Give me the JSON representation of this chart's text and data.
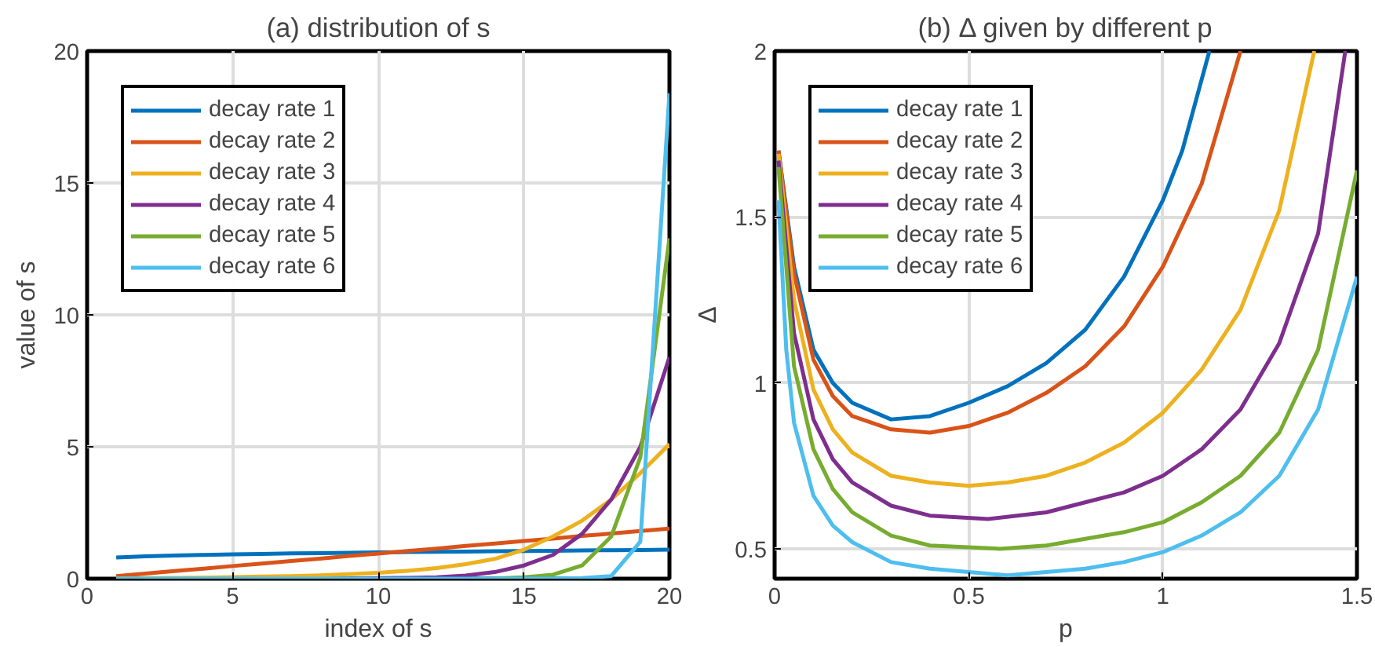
{
  "chart_data": [
    {
      "type": "line",
      "title": "(a) distribution of s",
      "xlabel": "index of s",
      "ylabel": "value of s",
      "x": [
        1,
        2,
        3,
        4,
        5,
        6,
        7,
        8,
        9,
        10,
        11,
        12,
        13,
        14,
        15,
        16,
        17,
        18,
        19,
        20
      ],
      "xlim": [
        0,
        20
      ],
      "xticks": [
        0,
        5,
        10,
        15,
        20
      ],
      "ylim": [
        0,
        20
      ],
      "yticks": [
        0,
        5,
        10,
        15,
        20
      ],
      "grid": true,
      "legend": "top left",
      "series": [
        {
          "name": "decay rate 1",
          "color": "#0072bd",
          "values": [
            0.8,
            0.85,
            0.88,
            0.9,
            0.92,
            0.94,
            0.96,
            0.97,
            0.98,
            1.0,
            1.01,
            1.02,
            1.03,
            1.04,
            1.05,
            1.06,
            1.07,
            1.08,
            1.09,
            1.1
          ]
        },
        {
          "name": "decay rate 2",
          "color": "#d95319",
          "values": [
            0.1,
            0.19,
            0.29,
            0.38,
            0.48,
            0.57,
            0.67,
            0.76,
            0.86,
            0.95,
            1.05,
            1.14,
            1.24,
            1.33,
            1.43,
            1.52,
            1.62,
            1.71,
            1.81,
            1.9
          ]
        },
        {
          "name": "decay rate 3",
          "color": "#edb120",
          "values": [
            0.01,
            0.02,
            0.03,
            0.04,
            0.06,
            0.08,
            0.1,
            0.13,
            0.17,
            0.22,
            0.3,
            0.4,
            0.55,
            0.75,
            1.1,
            1.6,
            2.2,
            3.0,
            4.0,
            5.1
          ]
        },
        {
          "name": "decay rate 4",
          "color": "#7e2f8e",
          "values": [
            null,
            null,
            null,
            null,
            null,
            null,
            null,
            null,
            0.01,
            0.02,
            0.03,
            0.05,
            0.12,
            0.25,
            0.5,
            0.9,
            1.7,
            3.0,
            5.0,
            8.4
          ]
        },
        {
          "name": "decay rate 5",
          "color": "#77ac30",
          "values": [
            null,
            null,
            null,
            null,
            null,
            null,
            null,
            null,
            null,
            null,
            null,
            null,
            null,
            0.01,
            0.05,
            0.15,
            0.5,
            1.6,
            4.6,
            12.9
          ]
        },
        {
          "name": "decay rate 6",
          "color": "#4dbeee",
          "values": [
            0,
            0,
            0,
            0,
            0,
            0,
            0,
            0,
            0,
            0,
            0,
            0,
            0,
            0,
            0,
            0,
            0.02,
            0.1,
            1.4,
            18.4
          ]
        }
      ]
    },
    {
      "type": "line",
      "title": "(b) Δ given by different p",
      "xlabel": "p",
      "ylabel": "Δ",
      "xlim": [
        0,
        1.5
      ],
      "xticks": [
        0,
        0.5,
        1,
        1.5
      ],
      "ylim": [
        0.41,
        2
      ],
      "yticks": [
        0.5,
        1,
        1.5,
        2
      ],
      "grid": true,
      "legend": "top left",
      "series": [
        {
          "name": "decay rate 1",
          "color": "#0072bd",
          "x": [
            0.01,
            0.05,
            0.1,
            0.15,
            0.2,
            0.3,
            0.4,
            0.5,
            0.6,
            0.7,
            0.8,
            0.9,
            1.0,
            1.05,
            1.12
          ],
          "values": [
            1.7,
            1.35,
            1.1,
            1.0,
            0.94,
            0.89,
            0.9,
            0.94,
            0.99,
            1.06,
            1.16,
            1.32,
            1.55,
            1.7,
            2.0
          ]
        },
        {
          "name": "decay rate 2",
          "color": "#d95319",
          "x": [
            0.01,
            0.05,
            0.1,
            0.15,
            0.2,
            0.3,
            0.4,
            0.5,
            0.6,
            0.7,
            0.8,
            0.9,
            1.0,
            1.1,
            1.2
          ],
          "values": [
            1.7,
            1.33,
            1.07,
            0.96,
            0.9,
            0.86,
            0.85,
            0.87,
            0.91,
            0.97,
            1.05,
            1.17,
            1.35,
            1.6,
            2.0
          ]
        },
        {
          "name": "decay rate 3",
          "color": "#edb120",
          "x": [
            0.01,
            0.05,
            0.1,
            0.15,
            0.2,
            0.3,
            0.4,
            0.5,
            0.6,
            0.7,
            0.8,
            0.9,
            1.0,
            1.1,
            1.2,
            1.3,
            1.39
          ],
          "values": [
            1.69,
            1.25,
            0.98,
            0.86,
            0.79,
            0.72,
            0.7,
            0.69,
            0.7,
            0.72,
            0.76,
            0.82,
            0.91,
            1.04,
            1.22,
            1.52,
            2.0
          ]
        },
        {
          "name": "decay rate 4",
          "color": "#7e2f8e",
          "x": [
            0.01,
            0.05,
            0.1,
            0.15,
            0.2,
            0.3,
            0.4,
            0.55,
            0.7,
            0.8,
            0.9,
            1.0,
            1.1,
            1.2,
            1.3,
            1.4,
            1.47
          ],
          "values": [
            1.67,
            1.15,
            0.89,
            0.77,
            0.7,
            0.63,
            0.6,
            0.59,
            0.61,
            0.64,
            0.67,
            0.72,
            0.8,
            0.92,
            1.12,
            1.45,
            2.0
          ]
        },
        {
          "name": "decay rate 5",
          "color": "#77ac30",
          "x": [
            0.01,
            0.05,
            0.1,
            0.15,
            0.2,
            0.3,
            0.4,
            0.58,
            0.7,
            0.8,
            0.9,
            1.0,
            1.1,
            1.2,
            1.3,
            1.4,
            1.5
          ],
          "values": [
            1.65,
            1.05,
            0.8,
            0.68,
            0.61,
            0.54,
            0.51,
            0.5,
            0.51,
            0.53,
            0.55,
            0.58,
            0.64,
            0.72,
            0.85,
            1.1,
            1.64
          ]
        },
        {
          "name": "decay rate 6",
          "color": "#4dbeee",
          "x": [
            0.01,
            0.03,
            0.05,
            0.1,
            0.15,
            0.2,
            0.3,
            0.4,
            0.6,
            0.7,
            0.8,
            0.9,
            1.0,
            1.1,
            1.2,
            1.3,
            1.4,
            1.5
          ],
          "values": [
            1.55,
            1.1,
            0.88,
            0.66,
            0.57,
            0.52,
            0.46,
            0.44,
            0.42,
            0.43,
            0.44,
            0.46,
            0.49,
            0.54,
            0.61,
            0.72,
            0.92,
            1.32
          ]
        }
      ]
    }
  ]
}
